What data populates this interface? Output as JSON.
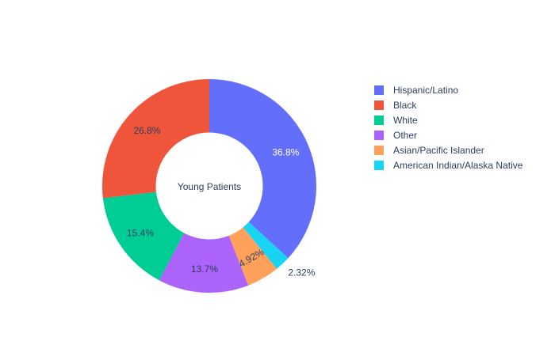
{
  "chart_data": {
    "type": "pie",
    "hole": 0.5,
    "center_label": "Young Patients",
    "direction": "clockwise",
    "start": "top",
    "slices": [
      {
        "label": "Hispanic/Latino",
        "value": 36.8,
        "text": "36.8%",
        "color": "#636efa",
        "text_position": "inside",
        "text_color": "#ffffff"
      },
      {
        "label": "American Indian/Alaska Native",
        "value": 2.32,
        "text": "2.32%",
        "color": "#19d3f3",
        "text_position": "outside",
        "text_color": "#2a3f5f"
      },
      {
        "label": "Asian/Pacific Islander",
        "value": 4.92,
        "text": "4.92%",
        "color": "#ffa15a",
        "text_position": "inside-rotated",
        "text_color": "#2a3f5f"
      },
      {
        "label": "Other",
        "value": 13.7,
        "text": "13.7%",
        "color": "#ab63fa",
        "text_position": "inside",
        "text_color": "#2a3f5f"
      },
      {
        "label": "White",
        "value": 15.4,
        "text": "15.4%",
        "color": "#00cc96",
        "text_position": "inside",
        "text_color": "#2a3f5f"
      },
      {
        "label": "Black",
        "value": 26.8,
        "text": "26.8%",
        "color": "#ef553b",
        "text_position": "inside",
        "text_color": "#2a3f5f"
      }
    ],
    "legend": {
      "placement": "top-right",
      "order": [
        "Hispanic/Latino",
        "Black",
        "White",
        "Other",
        "Asian/Pacific Islander",
        "American Indian/Alaska Native"
      ]
    }
  }
}
